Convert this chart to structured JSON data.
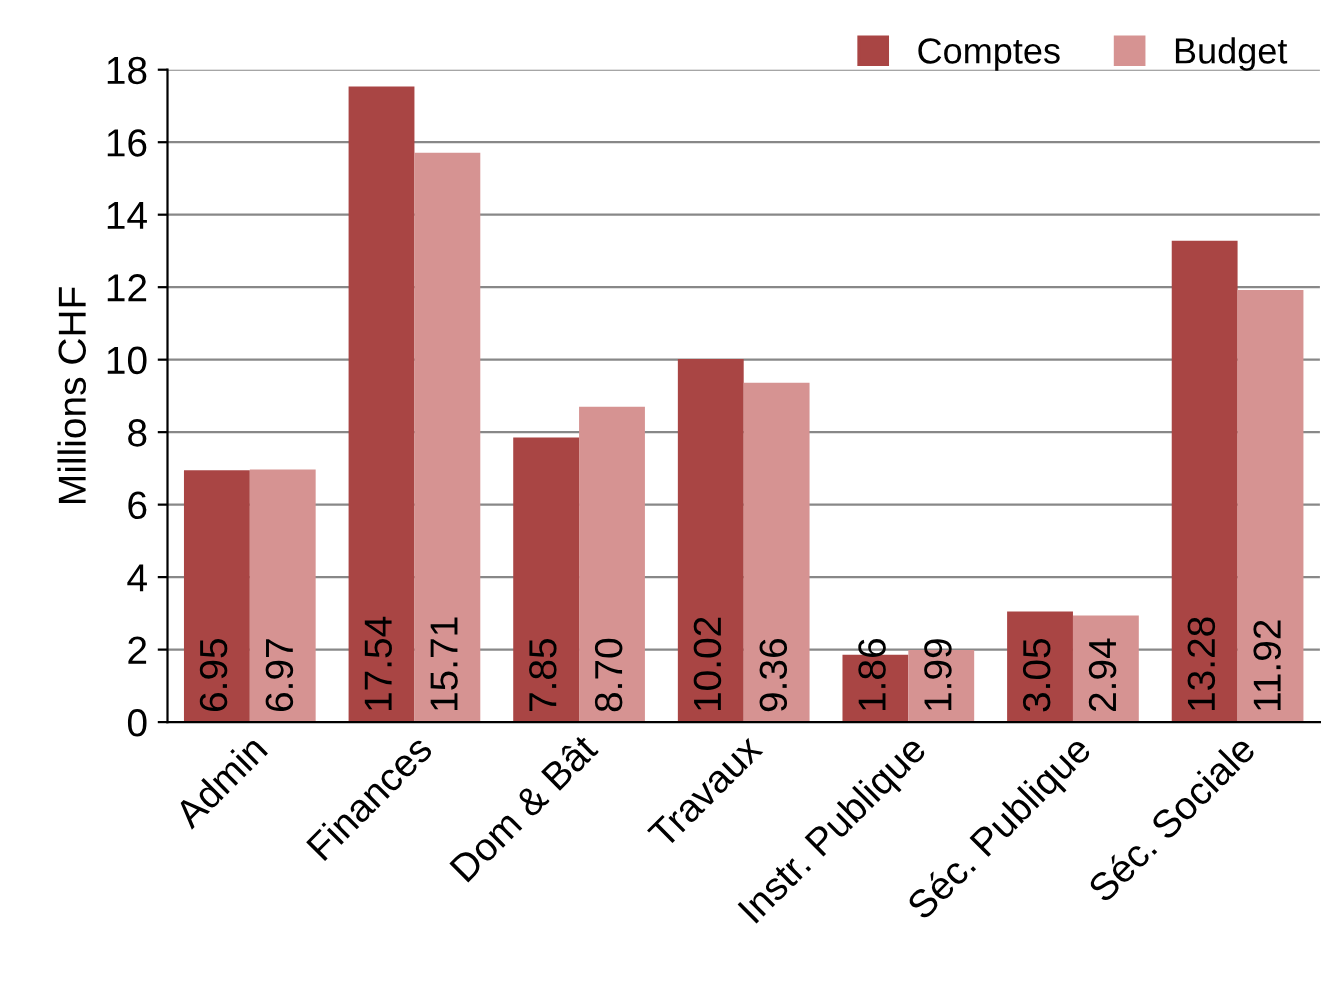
{
  "chart_data": {
    "type": "bar",
    "ylabel": "Millions CHF",
    "categories": [
      "Admin",
      "Finances",
      "Dom & Bât",
      "Travaux",
      "Instr. Publique",
      "Séc. Publique",
      "Séc. Sociale"
    ],
    "series": [
      {
        "name": "Comptes",
        "color": "#a94544",
        "values": [
          6.95,
          17.54,
          7.85,
          10.02,
          1.86,
          3.05,
          13.28
        ],
        "value_labels": [
          "6.95",
          "17.54",
          "7.85",
          "10.02",
          "1.86",
          "3.05",
          "13.28"
        ]
      },
      {
        "name": "Budget",
        "color": "#d69392",
        "values": [
          6.97,
          15.71,
          8.7,
          9.36,
          1.99,
          2.94,
          11.92
        ],
        "value_labels": [
          "6.97",
          "15.71",
          "8.70",
          "9.36",
          "1.99",
          "2.94",
          "11.92"
        ]
      }
    ],
    "ylim": [
      0,
      18
    ],
    "yticks": [
      0,
      2,
      4,
      6,
      8,
      10,
      12,
      14,
      16,
      18
    ],
    "grid": "y",
    "legend": "top right"
  }
}
